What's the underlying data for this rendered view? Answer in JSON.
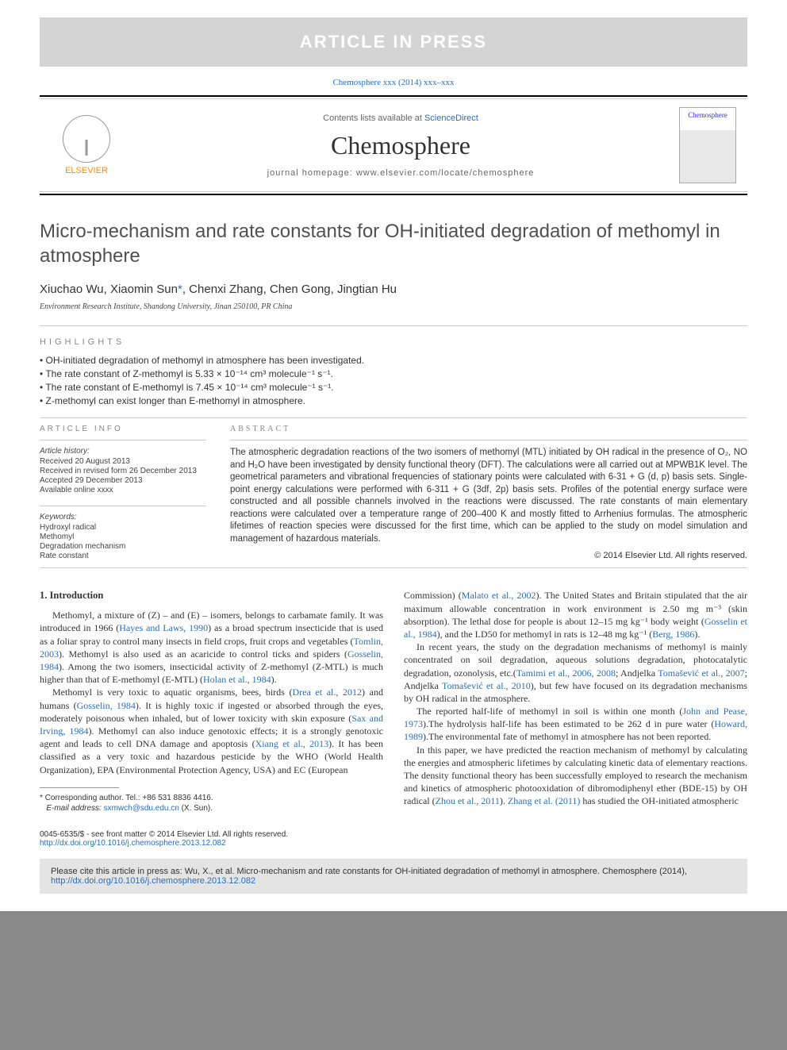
{
  "banner": {
    "text": "ARTICLE IN PRESS"
  },
  "journal_ref": {
    "prefix": "Chemosphere xxx (2014) xxx–xxx"
  },
  "header": {
    "publisher": "ELSEVIER",
    "contents_prefix": "Contents lists available at ",
    "contents_link": "ScienceDirect",
    "journal_name": "Chemosphere",
    "homepage_prefix": "journal homepage: ",
    "homepage_url": "www.elsevier.com/locate/chemosphere",
    "cover_label": "Chemosphere"
  },
  "article": {
    "title": "Micro-mechanism and rate constants for OH-initiated degradation of methomyl in atmosphere",
    "authors_pre": "Xiuchao Wu, Xiaomin Sun",
    "corr_mark": "*",
    "authors_post": ", Chenxi Zhang, Chen Gong, Jingtian Hu",
    "affiliation": "Environment Research Institute, Shandong University, Jinan 250100, PR China"
  },
  "highlights": {
    "label": "HIGHLIGHTS",
    "items": [
      "OH-initiated degradation of methomyl in atmosphere has been investigated.",
      "The rate constant of Z-methomyl is 5.33 × 10⁻¹⁴ cm³ molecule⁻¹ s⁻¹.",
      "The rate constant of E-methomyl is 7.45 × 10⁻¹⁴ cm³ molecule⁻¹ s⁻¹.",
      "Z-methomyl can exist longer than E-methomyl in atmosphere."
    ]
  },
  "article_info": {
    "label": "ARTICLE INFO",
    "history_label": "Article history:",
    "received": "Received 20 August 2013",
    "revised": "Received in revised form 26 December 2013",
    "accepted": "Accepted 29 December 2013",
    "online": "Available online xxxx",
    "keywords_label": "Keywords:",
    "keywords": [
      "Hydroxyl radical",
      "Methomyl",
      "Degradation mechanism",
      "Rate constant"
    ]
  },
  "abstract": {
    "label": "ABSTRACT",
    "text": "The atmospheric degradation reactions of the two isomers of methomyl (MTL) initiated by OH radical in the presence of O₂, NO and H₂O have been investigated by density functional theory (DFT). The calculations were all carried out at MPWB1K level. The geometrical parameters and vibrational frequencies of stationary points were calculated with 6-31 + G (d, p) basis sets. Single-point energy calculations were performed with 6-311 + G (3df, 2p) basis sets. Profiles of the potential energy surface were constructed and all possible channels involved in the reactions were discussed. The rate constants of main elementary reactions were calculated over a temperature range of 200–400 K and mostly fitted to Arrhenius formulas. The atmospheric lifetimes of reaction species were discussed for the first time, which can be applied to the study on model simulation and management of hazardous materials.",
    "copyright": "© 2014 Elsevier Ltd. All rights reserved."
  },
  "body": {
    "intro_heading": "1. Introduction",
    "col1": {
      "p1a": "Methomyl, a mixture of (Z) – and (E) – isomers, belongs to carbamate family. It was introduced in 1966 (",
      "p1c1": "Hayes and Laws, 1990",
      "p1b": ") as a broad spectrum insecticide that is used as a foliar spray to control many insects in field crops, fruit crops and vegetables (",
      "p1c2": "Tomlin, 2003",
      "p1c": "). Methomyl is also used as an acaricide to control ticks and spiders (",
      "p1c3": "Gosselin, 1984",
      "p1d": "). Among the two isomers, insecticidal activity of Z-methomyl (Z-MTL) is much higher than that of E-methomyl (E-MTL) (",
      "p1c4": "Holan et al., 1984",
      "p1e": ").",
      "p2a": "Methomyl is very toxic to aquatic organisms, bees, birds (",
      "p2c1": "Drea et al., 2012",
      "p2b": ") and humans (",
      "p2c2": "Gosselin, 1984",
      "p2c": "). It is highly toxic if ingested or absorbed through the eyes, moderately poisonous when inhaled, but of lower toxicity with skin exposure (",
      "p2c3": "Sax and Irving, 1984",
      "p2d": "). Methomyl can also induce genotoxic effects; it is a strongly genotoxic agent and leads to cell DNA damage and apoptosis (",
      "p2c4": "Xiang et al., 2013",
      "p2e": "). It has been classified as a very toxic and hazardous pesticide by the WHO (World Health Organization), EPA (Environmental Protection Agency, USA) and EC (European"
    },
    "col2": {
      "p1a": "Commission) (",
      "p1c1": "Malato et al., 2002",
      "p1b": "). The United States and Britain stipulated that the air maximum allowable concentration in work environment is 2.50 mg m⁻³ (skin absorption). The lethal dose for people is about 12–15 mg kg⁻¹ body weight (",
      "p1c2": "Gosselin et al., 1984",
      "p1c": "), and the LD50 for methomyl in rats is 12–48 mg kg⁻¹ (",
      "p1c3": "Berg, 1986",
      "p1d": ").",
      "p2a": "In recent years, the study on the degradation mechanisms of methomyl is mainly concentrated on soil degradation, aqueous solutions degradation, photocatalytic degradation, ozonolysis, etc.(",
      "p2c1": "Tamimi et al., 2006, 2008",
      "p2b": "; Andjelka ",
      "p2c2": "Tomašević et al., 2007",
      "p2c": "; Andjelka ",
      "p2c3": "Tomašević et al., 2010",
      "p2d": "), but few have focused on its degradation mechanisms by OH radical in the atmosphere.",
      "p3a": "The reported half-life of methomyl in soil is within one month (",
      "p3c1": "John and Pease, 1973",
      "p3b": ").The hydrolysis half-life has been estimated to be 262 d in pure water (",
      "p3c2": "Howard, 1989",
      "p3c": ").The environmental fate of methomyl in atmosphere has not been reported.",
      "p4a": "In this paper, we have predicted the reaction mechanism of methomyl by calculating the energies and atmospheric lifetimes by calculating kinetic data of elementary reactions. The density functional theory has been successfully employed to research the mechanism and kinetics of atmospheric photooxidation of dibromodiphenyl ether (BDE-15) by OH radical (",
      "p4c1": "Zhou et al., 2011",
      "p4b": "). ",
      "p4c2": "Zhang et al. (2011)",
      "p4c": " has studied the OH-initiated atmospheric"
    }
  },
  "footnote": {
    "corr": "* Corresponding author. Tel.: +86 531 8836 4416.",
    "email_label": "E-mail address: ",
    "email": "sxmwch@sdu.edu.cn",
    "email_suffix": " (X. Sun)."
  },
  "footer": {
    "line1": "0045-6535/$ - see front matter © 2014 Elsevier Ltd. All rights reserved.",
    "doi": "http://dx.doi.org/10.1016/j.chemosphere.2013.12.082"
  },
  "citebox": {
    "text": "Please cite this article in press as: Wu, X., et al. Micro-mechanism and rate constants for OH-initiated degradation of methomyl in atmosphere. Chemosphere (2014), ",
    "link": "http://dx.doi.org/10.1016/j.chemosphere.2013.12.082"
  },
  "colors": {
    "link": "#2a6ebb",
    "banner_bg": "#d4d4d4",
    "citebox_bg": "#e4e4e4",
    "orange": "#ff8c00"
  }
}
